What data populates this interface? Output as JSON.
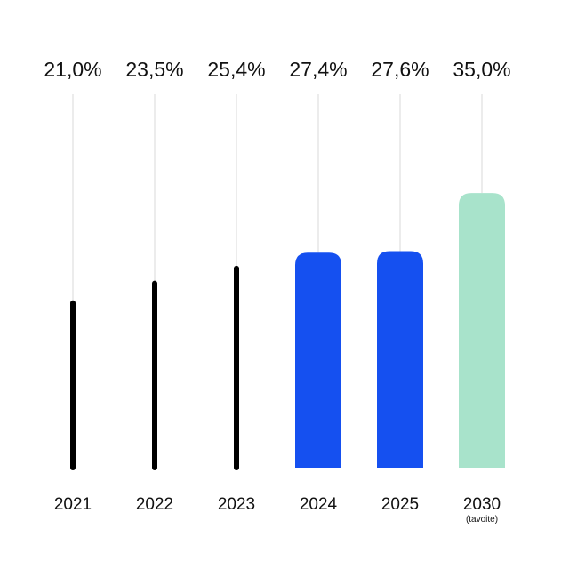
{
  "chart_data": {
    "type": "bar",
    "title": "",
    "xlabel": "",
    "ylabel": "",
    "categories": [
      "2021",
      "2022",
      "2023",
      "2024",
      "2025",
      "2030"
    ],
    "category_notes": [
      "",
      "",
      "",
      "",
      "",
      "(tavoite)"
    ],
    "values": [
      21.0,
      23.5,
      25.4,
      27.4,
      27.6,
      35.0
    ],
    "value_labels": [
      "21,0%",
      "23,5%",
      "25,4%",
      "27,4%",
      "27,6%",
      "35,0%"
    ],
    "bar_styles": [
      "thin",
      "thin",
      "thin",
      "wide",
      "wide",
      "wide"
    ],
    "bar_colors": [
      "#000000",
      "#000000",
      "#000000",
      "#1550F0",
      "#1550F0",
      "#A8E3CB"
    ],
    "ylim": [
      0,
      47.6
    ],
    "grid": "vertical guide lines",
    "legend": "none"
  }
}
